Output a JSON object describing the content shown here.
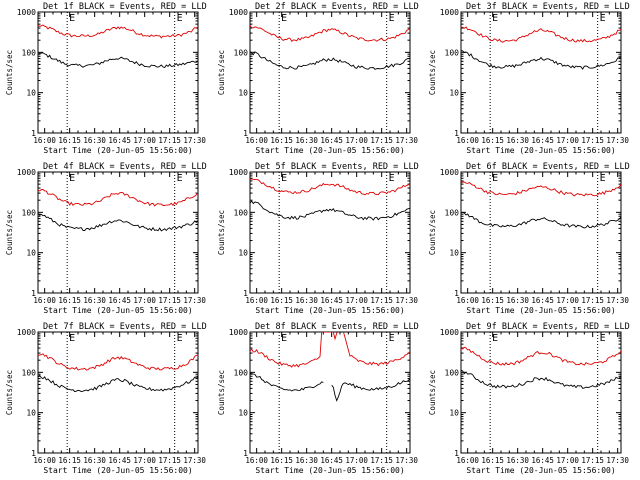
{
  "figure": {
    "colors": {
      "events": "#000000",
      "lld": "#e00000",
      "axes": "#000000"
    }
  },
  "chart_data": [
    {
      "type": "line",
      "title": "Det 1f BLACK = Events, RED = LLD",
      "xlabel": "Start Time (20-Jun-05 15:56:00)",
      "ylabel": "Counts/sec",
      "yscale": "log",
      "ylim": [
        1,
        1000
      ],
      "ytick_labels": [
        "1",
        "10",
        "100",
        "1000"
      ],
      "xlim": [
        0,
        96
      ],
      "xtick_values": [
        4,
        19,
        34,
        49,
        64,
        79,
        94
      ],
      "xtick_labels": [
        "16:00",
        "16:15",
        "16:30",
        "16:45",
        "17:00",
        "17:15",
        "17:30"
      ],
      "marker_times": [
        17.5,
        82
      ],
      "marker_label": "E",
      "series": [
        {
          "name": "LLD",
          "color": "red",
          "values": [
            460,
            430,
            380,
            320,
            280,
            260,
            255,
            255,
            260,
            280,
            330,
            380,
            420,
            400,
            350,
            300,
            270,
            255,
            250,
            250,
            255,
            260,
            290,
            330,
            430
          ]
        },
        {
          "name": "Events",
          "color": "black",
          "values": [
            95,
            90,
            75,
            62,
            52,
            48,
            47,
            47,
            48,
            52,
            60,
            68,
            72,
            68,
            60,
            53,
            48,
            46,
            45,
            45,
            47,
            49,
            52,
            57,
            62
          ]
        }
      ]
    },
    {
      "type": "line",
      "title": "Det 2f BLACK = Events, RED = LLD",
      "xlabel": "Start Time (20-Jun-05 15:56:00)",
      "ylabel": "Counts/sec",
      "yscale": "log",
      "ylim": [
        1,
        1000
      ],
      "ytick_labels": [
        "1",
        "10",
        "100",
        "1000"
      ],
      "xlim": [
        0,
        96
      ],
      "xtick_values": [
        4,
        19,
        34,
        49,
        64,
        79,
        94
      ],
      "xtick_labels": [
        "16:00",
        "16:15",
        "16:30",
        "16:45",
        "17:00",
        "17:15",
        "17:30"
      ],
      "marker_times": [
        17.5,
        82
      ],
      "marker_label": "E",
      "series": [
        {
          "name": "LLD",
          "color": "red",
          "values": [
            450,
            420,
            360,
            290,
            240,
            215,
            205,
            205,
            215,
            240,
            290,
            340,
            370,
            345,
            300,
            255,
            225,
            210,
            205,
            205,
            210,
            220,
            250,
            300,
            390
          ]
        },
        {
          "name": "Events",
          "color": "black",
          "values": [
            100,
            92,
            72,
            58,
            48,
            43,
            42,
            42,
            44,
            48,
            56,
            64,
            68,
            64,
            56,
            49,
            44,
            42,
            41,
            41,
            43,
            46,
            50,
            58,
            72
          ]
        }
      ]
    },
    {
      "type": "line",
      "title": "Det 3f BLACK = Events, RED = LLD",
      "xlabel": "Start Time (20-Jun-05 15:56:00)",
      "ylabel": "Counts/sec",
      "yscale": "log",
      "ylim": [
        1,
        1000
      ],
      "ytick_labels": [
        "1",
        "10",
        "100",
        "1000"
      ],
      "xlim": [
        0,
        96
      ],
      "xtick_values": [
        4,
        19,
        34,
        49,
        64,
        79,
        94
      ],
      "xtick_labels": [
        "16:00",
        "16:15",
        "16:30",
        "16:45",
        "17:00",
        "17:15",
        "17:30"
      ],
      "marker_times": [
        17.5,
        82
      ],
      "marker_label": "E",
      "series": [
        {
          "name": "LLD",
          "color": "red",
          "values": [
            430,
            400,
            340,
            270,
            225,
            200,
            192,
            192,
            200,
            225,
            275,
            325,
            355,
            330,
            285,
            240,
            212,
            198,
            192,
            192,
            198,
            210,
            240,
            290,
            370
          ]
        },
        {
          "name": "Events",
          "color": "black",
          "values": [
            105,
            95,
            75,
            60,
            50,
            45,
            44,
            44,
            46,
            50,
            58,
            66,
            70,
            66,
            58,
            50,
            45,
            43,
            42,
            42,
            44,
            47,
            52,
            60,
            75
          ]
        }
      ]
    },
    {
      "type": "line",
      "title": "Det 4f BLACK = Events, RED = LLD",
      "xlabel": "Start Time (20-Jun-05 15:56:00)",
      "ylabel": "Counts/sec",
      "yscale": "log",
      "ylim": [
        1,
        1000
      ],
      "ytick_labels": [
        "1",
        "10",
        "100",
        "1000"
      ],
      "xlim": [
        0,
        96
      ],
      "xtick_values": [
        4,
        19,
        34,
        49,
        64,
        79,
        94
      ],
      "xtick_labels": [
        "16:00",
        "16:15",
        "16:30",
        "16:45",
        "17:00",
        "17:15",
        "17:30"
      ],
      "marker_times": [
        17.5,
        82
      ],
      "marker_label": "E",
      "series": [
        {
          "name": "LLD",
          "color": "red",
          "values": [
            370,
            340,
            280,
            220,
            180,
            162,
            155,
            155,
            162,
            180,
            220,
            270,
            300,
            280,
            240,
            200,
            172,
            158,
            153,
            153,
            158,
            168,
            195,
            240,
            310
          ]
        },
        {
          "name": "Events",
          "color": "black",
          "values": [
            90,
            82,
            65,
            52,
            44,
            40,
            39,
            39,
            41,
            45,
            52,
            60,
            64,
            60,
            52,
            45,
            41,
            39,
            38,
            38,
            40,
            43,
            47,
            53,
            62
          ]
        }
      ]
    },
    {
      "type": "line",
      "title": "Det 5f BLACK = Events, RED = LLD",
      "xlabel": "Start Time (20-Jun-05 15:56:00)",
      "ylabel": "Counts/sec",
      "yscale": "log",
      "ylim": [
        1,
        1000
      ],
      "ytick_labels": [
        "1",
        "10",
        "100",
        "1000"
      ],
      "xlim": [
        0,
        96
      ],
      "xtick_values": [
        4,
        19,
        34,
        49,
        64,
        79,
        94
      ],
      "xtick_labels": [
        "16:00",
        "16:15",
        "16:30",
        "16:45",
        "17:00",
        "17:15",
        "17:30"
      ],
      "marker_times": [
        17.5,
        82
      ],
      "marker_label": "E",
      "series": [
        {
          "name": "LLD",
          "color": "red",
          "values": [
            660,
            620,
            540,
            440,
            370,
            330,
            315,
            315,
            330,
            365,
            420,
            480,
            510,
            480,
            420,
            360,
            320,
            300,
            292,
            292,
            300,
            320,
            365,
            430,
            540
          ]
        },
        {
          "name": "Events",
          "color": "black",
          "values": [
            185,
            170,
            135,
            105,
            88,
            78,
            74,
            74,
            78,
            86,
            100,
            112,
            118,
            110,
            96,
            84,
            76,
            72,
            70,
            70,
            74,
            80,
            90,
            104,
            125
          ]
        }
      ]
    },
    {
      "type": "line",
      "title": "Det 6f BLACK = Events, RED = LLD",
      "xlabel": "Start Time (20-Jun-05 15:56:00)",
      "ylabel": "Counts/sec",
      "yscale": "log",
      "ylim": [
        1,
        1000
      ],
      "ytick_labels": [
        "1",
        "10",
        "100",
        "1000"
      ],
      "xlim": [
        0,
        96
      ],
      "xtick_values": [
        4,
        19,
        34,
        49,
        64,
        79,
        94
      ],
      "xtick_labels": [
        "16:00",
        "16:15",
        "16:30",
        "16:45",
        "17:00",
        "17:15",
        "17:30"
      ],
      "marker_times": [
        17.5,
        82
      ],
      "marker_label": "E",
      "series": [
        {
          "name": "LLD",
          "color": "red",
          "values": [
            560,
            530,
            460,
            380,
            320,
            290,
            278,
            278,
            290,
            318,
            365,
            410,
            430,
            405,
            360,
            315,
            288,
            275,
            272,
            272,
            278,
            290,
            330,
            390,
            490
          ]
        },
        {
          "name": "Events",
          "color": "black",
          "values": [
            95,
            88,
            70,
            57,
            50,
            46,
            45,
            45,
            47,
            51,
            58,
            66,
            70,
            66,
            58,
            51,
            47,
            45,
            44,
            44,
            46,
            49,
            54,
            62,
            78
          ]
        }
      ]
    },
    {
      "type": "line",
      "title": "Det 7f BLACK = Events, RED = LLD",
      "xlabel": "Start Time (20-Jun-05 15:56:00)",
      "ylabel": "Counts/sec",
      "yscale": "log",
      "ylim": [
        1,
        1000
      ],
      "ytick_labels": [
        "1",
        "10",
        "100",
        "1000"
      ],
      "xlim": [
        0,
        96
      ],
      "xtick_values": [
        4,
        19,
        34,
        49,
        64,
        79,
        94
      ],
      "xtick_labels": [
        "16:00",
        "16:15",
        "16:30",
        "16:45",
        "17:00",
        "17:15",
        "17:30"
      ],
      "marker_times": [
        17.5,
        82
      ],
      "marker_label": "E",
      "series": [
        {
          "name": "LLD",
          "color": "red",
          "values": [
            290,
            270,
            215,
            170,
            140,
            127,
            122,
            122,
            127,
            140,
            170,
            210,
            235,
            220,
            185,
            155,
            135,
            125,
            122,
            122,
            126,
            135,
            158,
            200,
            270
          ]
        },
        {
          "name": "Events",
          "color": "black",
          "values": [
            82,
            75,
            60,
            48,
            41,
            37,
            36,
            36,
            38,
            42,
            50,
            60,
            66,
            62,
            52,
            44,
            40,
            38,
            37,
            37,
            40,
            45,
            52,
            62,
            78
          ]
        }
      ]
    },
    {
      "type": "line",
      "title": "Det 8f BLACK = Events, RED = LLD",
      "xlabel": "Start Time (20-Jun-05 15:56:00)",
      "ylabel": "Counts/sec",
      "yscale": "log",
      "ylim": [
        1,
        1000
      ],
      "ytick_labels": [
        "1",
        "10",
        "100",
        "1000"
      ],
      "xlim": [
        0,
        96
      ],
      "xtick_values": [
        4,
        19,
        34,
        49,
        64,
        79,
        94
      ],
      "xtick_labels": [
        "16:00",
        "16:15",
        "16:30",
        "16:45",
        "17:00",
        "17:15",
        "17:30"
      ],
      "marker_times": [
        17.5,
        82
      ],
      "marker_label": "E",
      "gap": {
        "from": 43,
        "to": 50
      },
      "series": [
        {
          "name": "LLD",
          "color": "red",
          "values": [
            360,
            335,
            275,
            215,
            175,
            155,
            148,
            148,
            156,
            175,
            215,
            265,
            300,
            1000,
            1000,
            260,
            200,
            175,
            165,
            160,
            165,
            178,
            205,
            250,
            330
          ]
        },
        {
          "name": "Events",
          "color": "black",
          "values": [
            90,
            82,
            64,
            50,
            42,
            38,
            36,
            36,
            38,
            42,
            50,
            58,
            62,
            20,
            55,
            50,
            44,
            40,
            38,
            38,
            40,
            44,
            50,
            58,
            72
          ]
        }
      ]
    },
    {
      "type": "line",
      "title": "Det 9f BLACK = Events, RED = LLD",
      "xlabel": "Start Time (20-Jun-05 15:56:00)",
      "ylabel": "Counts/sec",
      "yscale": "log",
      "ylim": [
        1,
        1000
      ],
      "ytick_labels": [
        "1",
        "10",
        "100",
        "1000"
      ],
      "xlim": [
        0,
        96
      ],
      "xtick_values": [
        4,
        19,
        34,
        49,
        64,
        79,
        94
      ],
      "xtick_labels": [
        "16:00",
        "16:15",
        "16:30",
        "16:45",
        "17:00",
        "17:15",
        "17:30"
      ],
      "marker_times": [
        17.5,
        82
      ],
      "marker_label": "E",
      "series": [
        {
          "name": "LLD",
          "color": "red",
          "values": [
            400,
            370,
            300,
            235,
            190,
            170,
            162,
            162,
            170,
            190,
            232,
            285,
            320,
            300,
            255,
            210,
            180,
            166,
            160,
            160,
            165,
            178,
            208,
            255,
            340
          ]
        },
        {
          "name": "Events",
          "color": "black",
          "values": [
            105,
            96,
            76,
            60,
            50,
            45,
            44,
            44,
            46,
            50,
            58,
            68,
            72,
            68,
            58,
            50,
            46,
            44,
            43,
            43,
            46,
            50,
            56,
            66,
            82
          ]
        }
      ]
    }
  ]
}
